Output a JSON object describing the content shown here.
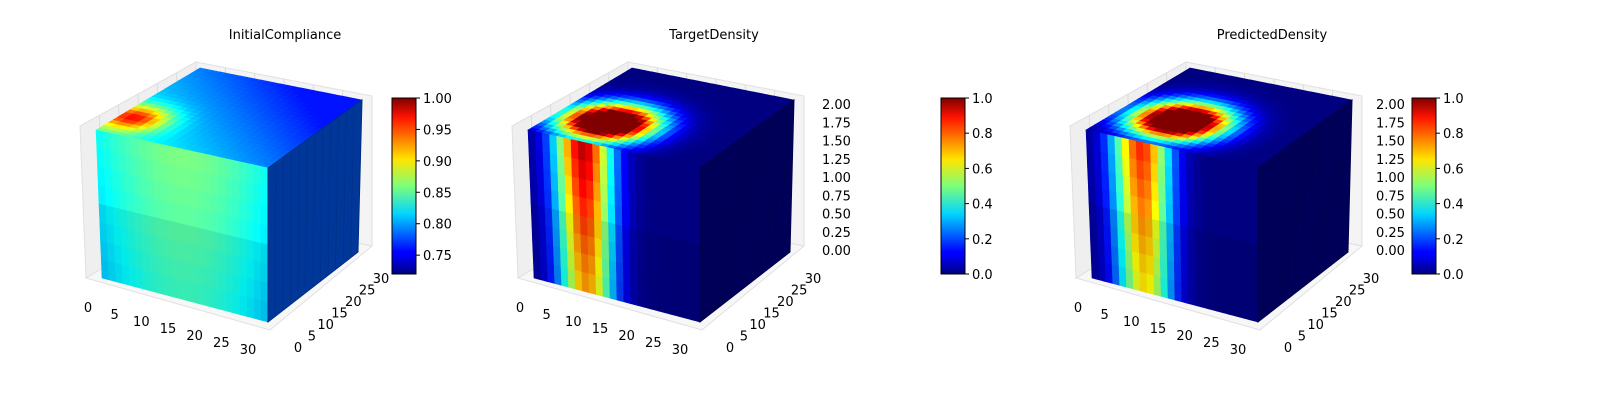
{
  "chart_data": [
    {
      "type": "heatmap",
      "title": "InitialCompliance",
      "x_ticks": [
        "0",
        "5",
        "10",
        "15",
        "20",
        "25",
        "30"
      ],
      "y_ticks": [
        "0",
        "5",
        "10",
        "15",
        "20",
        "25",
        "30"
      ],
      "z_ticks": [],
      "xlim": [
        0,
        32
      ],
      "ylim": [
        0,
        32
      ],
      "colormap": "jet",
      "colorbar": {
        "ticks": [
          "0.75",
          "0.80",
          "0.85",
          "0.90",
          "0.95",
          "1.00"
        ],
        "clim": [
          0.72,
          1.0
        ]
      },
      "top_face": {
        "hot_spot": [
          0.08,
          0.25
        ],
        "peak_value": 0.98,
        "base_value": 0.84,
        "far_value": 0.76
      },
      "front_face": {
        "value_range": [
          0.78,
          0.86
        ]
      },
      "right_face": {
        "value": 0.78
      }
    },
    {
      "type": "heatmap",
      "title": "TargetDensity",
      "x_ticks": [
        "0",
        "5",
        "10",
        "15",
        "20",
        "25",
        "30"
      ],
      "y_ticks": [
        "0",
        "5",
        "10",
        "15",
        "20",
        "25",
        "30"
      ],
      "z_ticks": [
        "0.00",
        "0.25",
        "0.50",
        "0.75",
        "1.00",
        "1.25",
        "1.50",
        "1.75",
        "2.00"
      ],
      "xlim": [
        0,
        32
      ],
      "ylim": [
        0,
        32
      ],
      "zlim": [
        0.0,
        2.0
      ],
      "colormap": "jet",
      "colorbar": {
        "ticks": [
          "0.0",
          "0.2",
          "0.4",
          "0.6",
          "0.8",
          "1.0"
        ],
        "clim": [
          0.0,
          1.0
        ]
      },
      "top_face": {
        "hot_spot": [
          0.3,
          0.3
        ],
        "peak_value": 1.0,
        "base_value": 0.0
      },
      "front_face": {
        "value_range": [
          0.0,
          0.95
        ]
      },
      "right_face": {
        "value": 0.02
      }
    },
    {
      "type": "heatmap",
      "title": "PredictedDensity",
      "x_ticks": [
        "0",
        "5",
        "10",
        "15",
        "20",
        "25",
        "30"
      ],
      "y_ticks": [
        "0",
        "5",
        "10",
        "15",
        "20",
        "25",
        "30"
      ],
      "z_ticks": [
        "0.00",
        "0.25",
        "0.50",
        "0.75",
        "1.00",
        "1.25",
        "1.50",
        "1.75",
        "2.00"
      ],
      "xlim": [
        0,
        32
      ],
      "ylim": [
        0,
        32
      ],
      "zlim": [
        0.0,
        2.0
      ],
      "colormap": "jet",
      "colorbar": {
        "ticks": [
          "0.0",
          "0.2",
          "0.4",
          "0.6",
          "0.8",
          "1.0"
        ],
        "clim": [
          0.0,
          1.0
        ]
      },
      "top_face": {
        "hot_spot": [
          0.35,
          0.35
        ],
        "peak_value": 1.0,
        "base_value": 0.0
      },
      "front_face": {
        "value_range": [
          0.0,
          0.85
        ]
      },
      "right_face": {
        "value": 0.02
      }
    }
  ]
}
